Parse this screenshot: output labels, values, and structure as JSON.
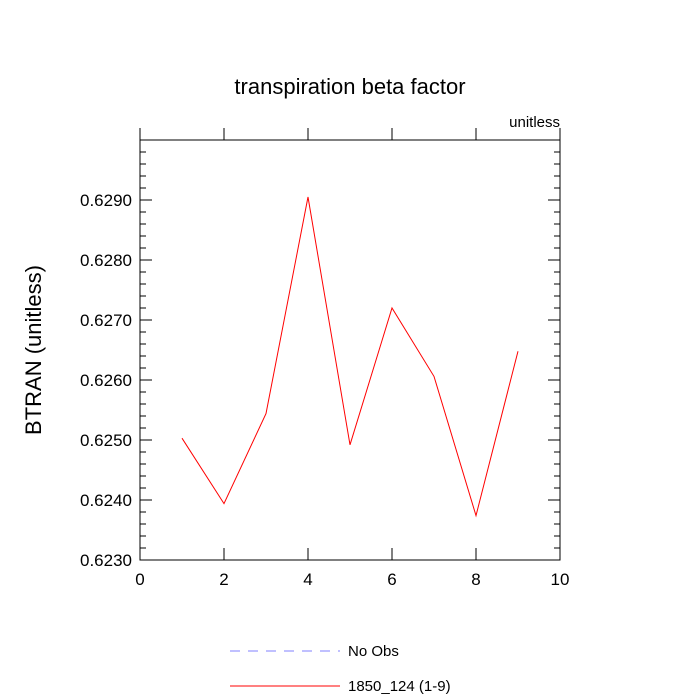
{
  "chart_data": {
    "type": "line",
    "title": "transpiration beta factor",
    "units_label": "unitless",
    "xlabel": "",
    "ylabel": "BTRAN  (unitless)",
    "xlim": [
      0,
      10
    ],
    "ylim": [
      0.623,
      0.63
    ],
    "xticks": [
      0,
      2,
      4,
      6,
      8,
      10
    ],
    "xtick_labels": [
      "0",
      "2",
      "4",
      "6",
      "8",
      "10"
    ],
    "yticks": [
      0.623,
      0.624,
      0.625,
      0.626,
      0.627,
      0.628,
      0.629
    ],
    "ytick_labels": [
      "0.6230",
      "0.6240",
      "0.6250",
      "0.6260",
      "0.6270",
      "0.6280",
      "0.6290"
    ],
    "grid": false,
    "legend_position": "bottom",
    "series": [
      {
        "name": "1850_124 (1-9)",
        "color": "#ff0000",
        "style": "solid",
        "x": [
          1,
          2,
          3,
          4,
          5,
          6,
          7,
          8,
          9
        ],
        "y": [
          0.62503,
          0.62394,
          0.62544,
          0.62905,
          0.62492,
          0.6272,
          0.62606,
          0.62374,
          0.62648
        ]
      }
    ],
    "legend": [
      {
        "label": "No Obs",
        "color": "#8080ff",
        "style": "dashed"
      },
      {
        "label": "1850_124 (1-9)",
        "color": "#ff0000",
        "style": "solid"
      }
    ]
  }
}
